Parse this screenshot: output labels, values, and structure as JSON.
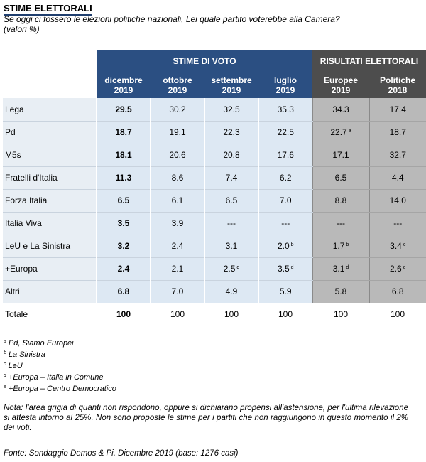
{
  "title": "STIME ELETTORALI",
  "subtitle": "Se oggi ci fossero le elezioni politiche nazionali, Lei quale partito voterebbe alla Camera?",
  "units": "(valori %)",
  "groups": {
    "estimates": "STIME DI VOTO",
    "results": "RISULTATI ELETTORALI"
  },
  "columns": [
    {
      "line1": "dicembre",
      "line2": "2019"
    },
    {
      "line1": "ottobre",
      "line2": "2019"
    },
    {
      "line1": "settembre",
      "line2": "2019"
    },
    {
      "line1": "luglio",
      "line2": "2019"
    },
    {
      "line1": "Europee",
      "line2": "2019"
    },
    {
      "line1": "Politiche",
      "line2": "2018"
    }
  ],
  "rows": [
    {
      "party": "Lega",
      "values": [
        {
          "v": "29.5",
          "n": ""
        },
        {
          "v": "30.2",
          "n": ""
        },
        {
          "v": "32.5",
          "n": ""
        },
        {
          "v": "35.3",
          "n": ""
        },
        {
          "v": "34.3",
          "n": ""
        },
        {
          "v": "17.4",
          "n": ""
        }
      ]
    },
    {
      "party": "Pd",
      "values": [
        {
          "v": "18.7",
          "n": ""
        },
        {
          "v": "19.1",
          "n": ""
        },
        {
          "v": "22.3",
          "n": ""
        },
        {
          "v": "22.5",
          "n": ""
        },
        {
          "v": "22.7",
          "n": "a"
        },
        {
          "v": "18.7",
          "n": ""
        }
      ]
    },
    {
      "party": "M5s",
      "values": [
        {
          "v": "18.1",
          "n": ""
        },
        {
          "v": "20.6",
          "n": ""
        },
        {
          "v": "20.8",
          "n": ""
        },
        {
          "v": "17.6",
          "n": ""
        },
        {
          "v": "17.1",
          "n": ""
        },
        {
          "v": "32.7",
          "n": ""
        }
      ]
    },
    {
      "party": "Fratelli d'Italia",
      "values": [
        {
          "v": "11.3",
          "n": ""
        },
        {
          "v": "8.6",
          "n": ""
        },
        {
          "v": "7.4",
          "n": ""
        },
        {
          "v": "6.2",
          "n": ""
        },
        {
          "v": "6.5",
          "n": ""
        },
        {
          "v": "4.4",
          "n": ""
        }
      ]
    },
    {
      "party": "Forza Italia",
      "values": [
        {
          "v": "6.5",
          "n": ""
        },
        {
          "v": "6.1",
          "n": ""
        },
        {
          "v": "6.5",
          "n": ""
        },
        {
          "v": "7.0",
          "n": ""
        },
        {
          "v": "8.8",
          "n": ""
        },
        {
          "v": "14.0",
          "n": ""
        }
      ]
    },
    {
      "party": "Italia Viva",
      "values": [
        {
          "v": "3.5",
          "n": ""
        },
        {
          "v": "3.9",
          "n": ""
        },
        {
          "v": "---",
          "n": ""
        },
        {
          "v": "---",
          "n": ""
        },
        {
          "v": "---",
          "n": ""
        },
        {
          "v": "---",
          "n": ""
        }
      ]
    },
    {
      "party": "LeU e La Sinistra",
      "values": [
        {
          "v": "3.2",
          "n": ""
        },
        {
          "v": "2.4",
          "n": ""
        },
        {
          "v": "3.1",
          "n": ""
        },
        {
          "v": "2.0",
          "n": "b"
        },
        {
          "v": "1.7",
          "n": "b"
        },
        {
          "v": "3.4",
          "n": "c"
        }
      ]
    },
    {
      "party": "+Europa",
      "values": [
        {
          "v": "2.4",
          "n": ""
        },
        {
          "v": "2.1",
          "n": ""
        },
        {
          "v": "2.5",
          "n": "d"
        },
        {
          "v": "3.5",
          "n": "d"
        },
        {
          "v": "3.1",
          "n": "d"
        },
        {
          "v": "2.6",
          "n": "e"
        }
      ]
    },
    {
      "party": "Altri",
      "values": [
        {
          "v": "6.8",
          "n": ""
        },
        {
          "v": "7.0",
          "n": ""
        },
        {
          "v": "4.9",
          "n": ""
        },
        {
          "v": "5.9",
          "n": ""
        },
        {
          "v": "5.8",
          "n": ""
        },
        {
          "v": "6.8",
          "n": ""
        }
      ]
    }
  ],
  "total": {
    "label": "Totale",
    "values": [
      "100",
      "100",
      "100",
      "100",
      "100",
      "100"
    ]
  },
  "footnotes": [
    {
      "mark": "a",
      "text": "Pd, Siamo Europei"
    },
    {
      "mark": "b",
      "text": "La Sinistra"
    },
    {
      "mark": "c",
      "text": "LeU"
    },
    {
      "mark": "d",
      "text": "+Europa – Italia in Comune"
    },
    {
      "mark": "e",
      "text": "+Europa – Centro Democratico"
    }
  ],
  "nota": "Nota: l'area grigia di quanti non rispondono, oppure si dichiarano propensi all'astensione, per l'ultima rilevazione si attesta intorno al 25%. Non sono proposte le stime per i partiti che non raggiungono in questo momento il 2% dei voti.",
  "fonte": "Fonte: Sondaggio Demos & Pi, Dicembre 2019 (base: 1276 casi)"
}
